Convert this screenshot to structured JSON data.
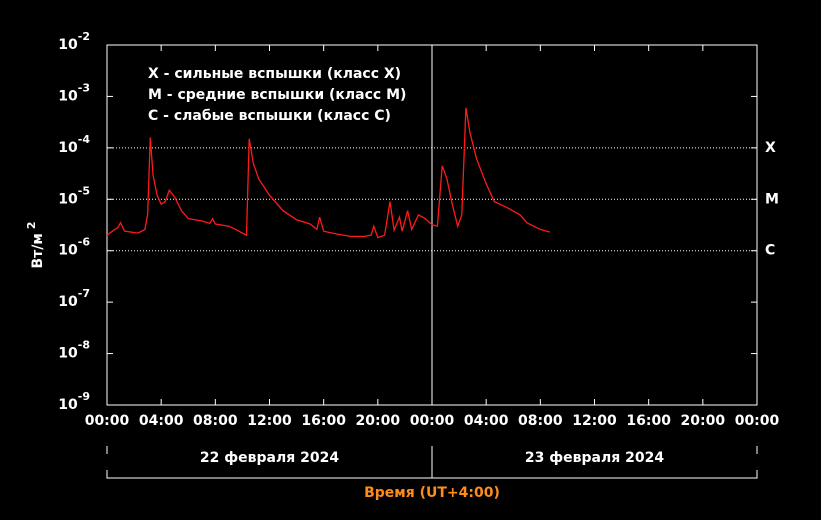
{
  "chart_data": {
    "type": "line",
    "log_y": true,
    "ylabel": "Вт/м",
    "ylabel_exponent": "2",
    "xlabel": "Время (UT+4:00)",
    "annotations": [
      "X  - сильные вспышки (класс X)",
      "M  - средние вспышки (класс M)",
      "C  - слабые вспышки (класс C)"
    ],
    "classes": [
      {
        "label": "X",
        "value": 0.0001
      },
      {
        "label": "M",
        "value": 1e-05
      },
      {
        "label": "C",
        "value": 1e-06
      }
    ],
    "dates": [
      "22 февраля 2024",
      "23 февраля 2024"
    ],
    "xlim": [
      0,
      48
    ],
    "xticks": [
      {
        "value": 0,
        "label": "00:00"
      },
      {
        "value": 4,
        "label": "04:00"
      },
      {
        "value": 8,
        "label": "08:00"
      },
      {
        "value": 12,
        "label": "12:00"
      },
      {
        "value": 16,
        "label": "16:00"
      },
      {
        "value": 20,
        "label": "20:00"
      },
      {
        "value": 24,
        "label": "00:00"
      },
      {
        "value": 28,
        "label": "04:00"
      },
      {
        "value": 32,
        "label": "08:00"
      },
      {
        "value": 36,
        "label": "12:00"
      },
      {
        "value": 40,
        "label": "16:00"
      },
      {
        "value": 44,
        "label": "20:00"
      },
      {
        "value": 48,
        "label": "00:00"
      }
    ],
    "ylim": [
      1e-09,
      0.01
    ],
    "yticks": [
      {
        "value": 0.01,
        "label": "10",
        "exponent": "-2"
      },
      {
        "value": 0.001,
        "label": "10",
        "exponent": "-3"
      },
      {
        "value": 0.0001,
        "label": "10",
        "exponent": "-4"
      },
      {
        "value": 1e-05,
        "label": "10",
        "exponent": "-5"
      },
      {
        "value": 1e-06,
        "label": "10",
        "exponent": "-6"
      },
      {
        "value": 1e-07,
        "label": "10",
        "exponent": "-7"
      },
      {
        "value": 1e-08,
        "label": "10",
        "exponent": "-8"
      },
      {
        "value": 1e-09,
        "label": "10",
        "exponent": "-9"
      }
    ],
    "series": [
      {
        "color": "#ff1a1a",
        "x": [
          0,
          0.5,
          0.8,
          1.0,
          1.3,
          1.8,
          2.3,
          2.8,
          3.0,
          3.2,
          3.4,
          3.7,
          4.0,
          4.3,
          4.6,
          5.0,
          5.5,
          6.0,
          7.0,
          7.6,
          7.8,
          8.0,
          9.0,
          9.5,
          10.0,
          10.3,
          10.5,
          10.8,
          11.2,
          12.0,
          13.0,
          14.0,
          15.0,
          15.5,
          15.7,
          16.0,
          17.0,
          18.0,
          19.0,
          19.5,
          19.7,
          20.0,
          20.5,
          20.9,
          21.2,
          21.6,
          21.8,
          22.2,
          22.5,
          23.0,
          23.5,
          24.0,
          24.4,
          24.75,
          25.1,
          25.5,
          25.9,
          26.2,
          26.5,
          26.8,
          27.3,
          28.0,
          28.6,
          29.5,
          30.5,
          31.0,
          32.0,
          32.7
        ],
        "values": [
          2e-06,
          2.5e-06,
          2.8e-06,
          3.5e-06,
          2.4e-06,
          2.3e-06,
          2.2e-06,
          2.6e-06,
          5e-06,
          0.00016,
          3e-05,
          1.2e-05,
          8e-06,
          9e-06,
          1.5e-05,
          1.1e-05,
          6e-06,
          4.2e-06,
          3.8e-06,
          3.4e-06,
          4.2e-06,
          3.3e-06,
          3e-06,
          2.6e-06,
          2.2e-06,
          2e-06,
          0.00015,
          5e-05,
          2.5e-05,
          1.2e-05,
          6e-06,
          4e-06,
          3.3e-06,
          2.6e-06,
          4.5e-06,
          2.4e-06,
          2.1e-06,
          1.9e-06,
          1.9e-06,
          2e-06,
          3e-06,
          1.8e-06,
          2e-06,
          9e-06,
          2.5e-06,
          4.5e-06,
          2.4e-06,
          6e-06,
          2.6e-06,
          5e-06,
          4.2e-06,
          3.2e-06,
          3e-06,
          4.5e-05,
          2.5e-05,
          8e-06,
          3e-06,
          5e-06,
          0.0006,
          0.0002,
          6e-05,
          2e-05,
          9e-06,
          7e-06,
          5e-06,
          3.5e-06,
          2.6e-06,
          2.3e-06
        ]
      }
    ]
  }
}
